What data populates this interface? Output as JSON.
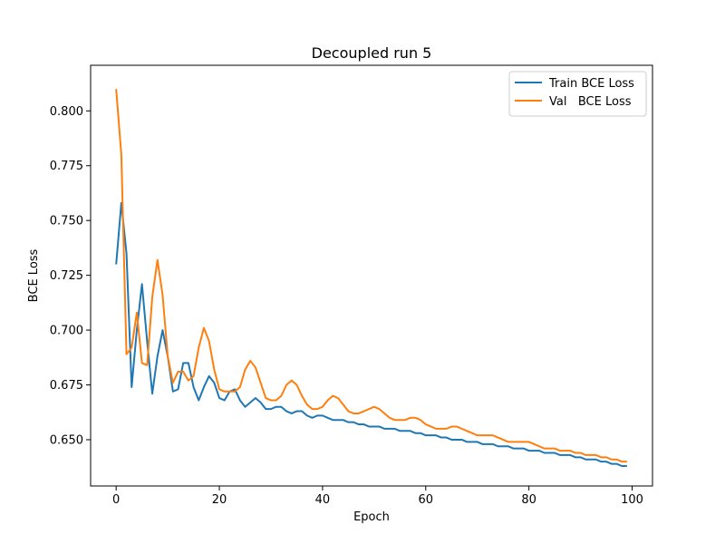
{
  "chart_data": {
    "type": "line",
    "title": "Decoupled run 5",
    "xlabel": "Epoch",
    "ylabel": "BCE Loss",
    "xlim": [
      -4.95,
      103.95
    ],
    "ylim": [
      0.6289,
      0.8208
    ],
    "xticks": [
      0,
      20,
      40,
      60,
      80,
      100
    ],
    "xtick_labels": [
      "0",
      "20",
      "40",
      "60",
      "80",
      "100"
    ],
    "yticks": [
      0.65,
      0.675,
      0.7,
      0.725,
      0.75,
      0.775,
      0.8
    ],
    "ytick_labels": [
      "0.650",
      "0.675",
      "0.700",
      "0.725",
      "0.750",
      "0.775",
      "0.800"
    ],
    "grid": false,
    "legend_position": "upper right",
    "series": [
      {
        "name": "Train BCE Loss",
        "color": "#1f77b4",
        "x": [
          0,
          1,
          2,
          3,
          4,
          5,
          6,
          7,
          8,
          9,
          10,
          11,
          12,
          13,
          14,
          15,
          16,
          17,
          18,
          19,
          20,
          21,
          22,
          23,
          24,
          25,
          26,
          27,
          28,
          29,
          30,
          31,
          32,
          33,
          34,
          35,
          36,
          37,
          38,
          39,
          40,
          41,
          42,
          43,
          44,
          45,
          46,
          47,
          48,
          49,
          50,
          51,
          52,
          53,
          54,
          55,
          56,
          57,
          58,
          59,
          60,
          61,
          62,
          63,
          64,
          65,
          66,
          67,
          68,
          69,
          70,
          71,
          72,
          73,
          74,
          75,
          76,
          77,
          78,
          79,
          80,
          81,
          82,
          83,
          84,
          85,
          86,
          87,
          88,
          89,
          90,
          91,
          92,
          93,
          94,
          95,
          96,
          97,
          98,
          99
        ],
        "values": [
          0.73,
          0.758,
          0.735,
          0.674,
          0.7,
          0.721,
          0.695,
          0.671,
          0.688,
          0.7,
          0.688,
          0.672,
          0.673,
          0.685,
          0.685,
          0.674,
          0.668,
          0.674,
          0.679,
          0.676,
          0.669,
          0.668,
          0.672,
          0.673,
          0.668,
          0.665,
          0.667,
          0.669,
          0.667,
          0.664,
          0.664,
          0.665,
          0.665,
          0.663,
          0.662,
          0.663,
          0.663,
          0.661,
          0.66,
          0.661,
          0.661,
          0.66,
          0.659,
          0.659,
          0.659,
          0.658,
          0.658,
          0.657,
          0.657,
          0.656,
          0.656,
          0.656,
          0.655,
          0.655,
          0.655,
          0.654,
          0.654,
          0.654,
          0.653,
          0.653,
          0.652,
          0.652,
          0.652,
          0.651,
          0.651,
          0.65,
          0.65,
          0.65,
          0.649,
          0.649,
          0.649,
          0.648,
          0.648,
          0.648,
          0.647,
          0.647,
          0.647,
          0.646,
          0.646,
          0.646,
          0.645,
          0.645,
          0.645,
          0.644,
          0.644,
          0.644,
          0.643,
          0.643,
          0.643,
          0.642,
          0.642,
          0.641,
          0.641,
          0.641,
          0.64,
          0.64,
          0.639,
          0.639,
          0.638,
          0.638
        ]
      },
      {
        "name": "Val   BCE Loss",
        "color": "#ff7f0e",
        "x": [
          0,
          1,
          2,
          3,
          4,
          5,
          6,
          7,
          8,
          9,
          10,
          11,
          12,
          13,
          14,
          15,
          16,
          17,
          18,
          19,
          20,
          21,
          22,
          23,
          24,
          25,
          26,
          27,
          28,
          29,
          30,
          31,
          32,
          33,
          34,
          35,
          36,
          37,
          38,
          39,
          40,
          41,
          42,
          43,
          44,
          45,
          46,
          47,
          48,
          49,
          50,
          51,
          52,
          53,
          54,
          55,
          56,
          57,
          58,
          59,
          60,
          61,
          62,
          63,
          64,
          65,
          66,
          67,
          68,
          69,
          70,
          71,
          72,
          73,
          74,
          75,
          76,
          77,
          78,
          79,
          80,
          81,
          82,
          83,
          84,
          85,
          86,
          87,
          88,
          89,
          90,
          91,
          92,
          93,
          94,
          95,
          96,
          97,
          98,
          99
        ],
        "values": [
          0.81,
          0.78,
          0.689,
          0.692,
          0.708,
          0.685,
          0.684,
          0.715,
          0.732,
          0.716,
          0.688,
          0.676,
          0.681,
          0.681,
          0.677,
          0.679,
          0.692,
          0.701,
          0.695,
          0.682,
          0.673,
          0.672,
          0.672,
          0.672,
          0.674,
          0.682,
          0.686,
          0.683,
          0.676,
          0.669,
          0.668,
          0.668,
          0.67,
          0.675,
          0.677,
          0.675,
          0.67,
          0.666,
          0.664,
          0.664,
          0.665,
          0.668,
          0.67,
          0.669,
          0.666,
          0.663,
          0.662,
          0.662,
          0.663,
          0.664,
          0.665,
          0.664,
          0.662,
          0.66,
          0.659,
          0.659,
          0.659,
          0.66,
          0.66,
          0.659,
          0.657,
          0.656,
          0.655,
          0.655,
          0.655,
          0.656,
          0.656,
          0.655,
          0.654,
          0.653,
          0.652,
          0.652,
          0.652,
          0.652,
          0.651,
          0.65,
          0.649,
          0.649,
          0.649,
          0.649,
          0.649,
          0.648,
          0.647,
          0.646,
          0.646,
          0.646,
          0.645,
          0.645,
          0.645,
          0.644,
          0.644,
          0.643,
          0.643,
          0.643,
          0.642,
          0.642,
          0.641,
          0.641,
          0.64,
          0.64
        ]
      }
    ]
  }
}
